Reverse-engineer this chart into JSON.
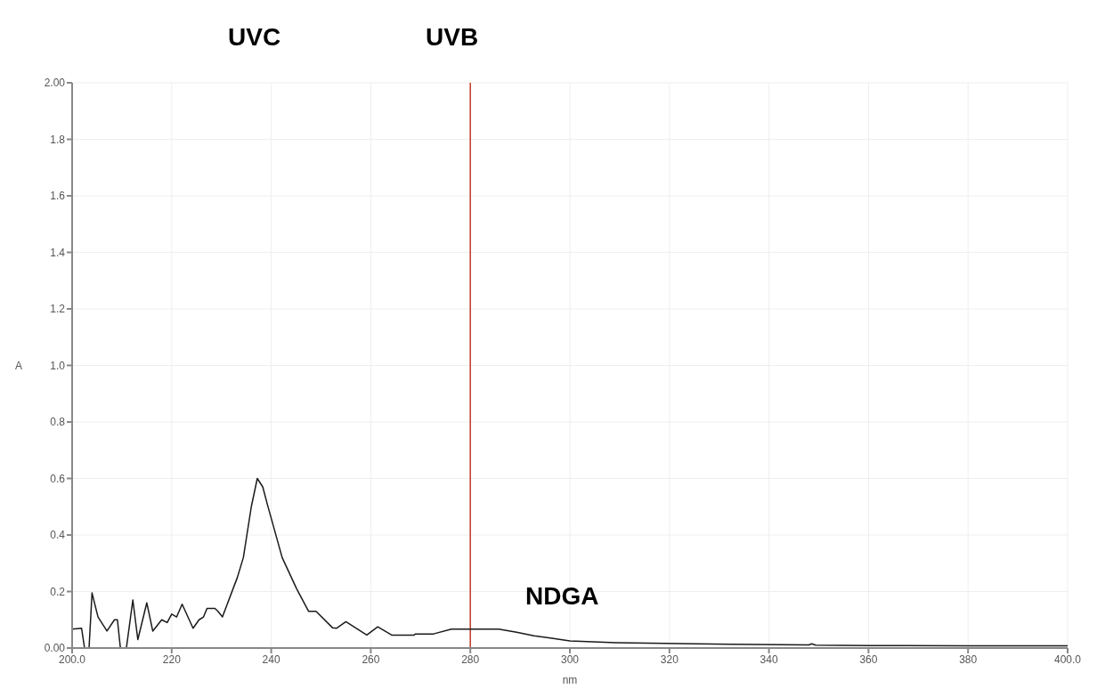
{
  "chart_data": {
    "type": "line",
    "xlabel": "nm",
    "ylabel": "A",
    "annotations": [
      "UVC",
      "UVB",
      "NDGA"
    ],
    "x": [
      200,
      201.9,
      202.5,
      203.4,
      204.0,
      205.2,
      207,
      208.5,
      209.1,
      209.7,
      210.9,
      212.2,
      213.2,
      215.0,
      216.2,
      218.0,
      219.1,
      220.0,
      221,
      222.1,
      224.3,
      225.5,
      226.4,
      227.1,
      228.7,
      229.3,
      230.2,
      233.2,
      234.4,
      236,
      237.2,
      238.3,
      239.2,
      242.2,
      245.1,
      247.5,
      249,
      252.3,
      253.1,
      255.0,
      259.2,
      261.4,
      264.2,
      268.7,
      269,
      272.6,
      276.2,
      285.7,
      289.3,
      292.8,
      296.4,
      300,
      309.3,
      332.2,
      348,
      348.6,
      349.4,
      360,
      380,
      400
    ],
    "series": [
      {
        "color": "#1a1a1a",
        "values": [
          0.067,
          0.07,
          0,
          0,
          0.195,
          0.11,
          0.06,
          0.1,
          0.1,
          0,
          0,
          0.17,
          0.03,
          0.16,
          0.06,
          0.1,
          0.09,
          0.12,
          0.11,
          0.155,
          0.07,
          0.1,
          0.11,
          0.14,
          0.14,
          0.13,
          0.11,
          0.25,
          0.32,
          0.5,
          0.6,
          0.57,
          0.51,
          0.32,
          0.21,
          0.13,
          0.13,
          0.072,
          0.07,
          0.093,
          0.046,
          0.075,
          0.046,
          0.046,
          0.05,
          0.05,
          0.067,
          0.067,
          0.056,
          0.043,
          0.035,
          0.025,
          0.019,
          0.013,
          0.011,
          0.015,
          0.01,
          0.009,
          0.008,
          0.008
        ]
      }
    ],
    "xlim": [
      200,
      400
    ],
    "xticks": [
      {
        "value": 200,
        "label": "200.0"
      },
      220,
      240,
      260,
      280,
      300,
      320,
      340,
      360,
      380,
      {
        "value": 400,
        "label": "400.0"
      }
    ],
    "ylim": [
      0,
      2
    ],
    "yticks": [
      {
        "value": 0,
        "label": "0.00"
      },
      0.2,
      0.4,
      0.6,
      0.8,
      {
        "value": 1,
        "label": "1.0"
      },
      1.2,
      1.4,
      1.6,
      1.8,
      {
        "value": 2,
        "label": "2.00"
      }
    ],
    "ref_lines": [
      {
        "axis": "x",
        "value": 280,
        "color": "#c0392b"
      }
    ],
    "grid": true,
    "marker": "none",
    "line_style": "solid"
  }
}
